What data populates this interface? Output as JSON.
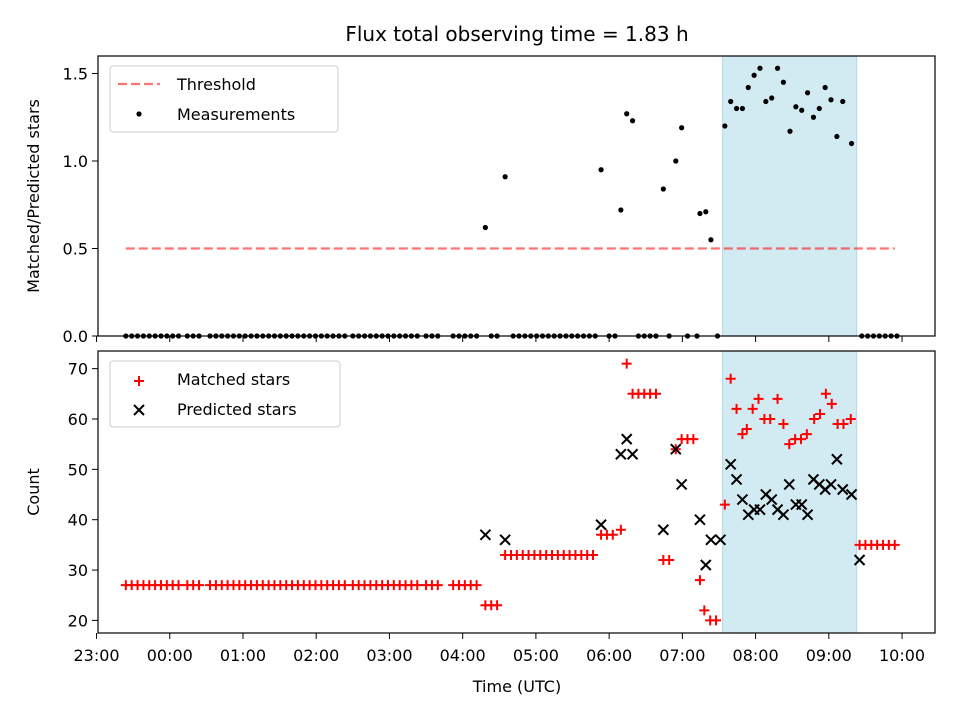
{
  "chart_data": [
    {
      "type": "scatter",
      "title": "Flux total observing time = 1.83 h",
      "xlabel": "",
      "ylabel": "Matched/Predicted stars",
      "ylim": [
        0,
        1.6
      ],
      "yticks": [
        0.0,
        0.5,
        1.0,
        1.5
      ],
      "ytick_labels": [
        "0.0",
        "0.5",
        "1.0",
        "1.5"
      ],
      "x_unit": "hours since 00:00 UTC",
      "xlim": [
        -0.98,
        10.45
      ],
      "highlight_window": {
        "start": 7.55,
        "end": 9.38,
        "color": "#add8e6"
      },
      "threshold": {
        "label": "Threshold",
        "value": 0.5,
        "x_start": -0.6,
        "x_end": 9.9,
        "color": "#ff0000"
      },
      "measurements_label": "Measurements",
      "legend": [
        "Threshold",
        "Measurements"
      ],
      "legend_position": "upper-left",
      "measurements": [
        [
          -0.6,
          0
        ],
        [
          -0.52,
          0
        ],
        [
          -0.44,
          0
        ],
        [
          -0.36,
          0
        ],
        [
          -0.28,
          0
        ],
        [
          -0.2,
          0
        ],
        [
          -0.12,
          0
        ],
        [
          -0.04,
          0
        ],
        [
          0.04,
          0
        ],
        [
          0.12,
          0
        ],
        [
          0.24,
          0
        ],
        [
          0.32,
          0
        ],
        [
          0.4,
          0
        ],
        [
          0.55,
          0
        ],
        [
          0.63,
          0
        ],
        [
          0.71,
          0
        ],
        [
          0.79,
          0
        ],
        [
          0.87,
          0
        ],
        [
          0.95,
          0
        ],
        [
          1.03,
          0
        ],
        [
          1.11,
          0
        ],
        [
          1.19,
          0
        ],
        [
          1.27,
          0
        ],
        [
          1.35,
          0
        ],
        [
          1.43,
          0
        ],
        [
          1.51,
          0
        ],
        [
          1.59,
          0
        ],
        [
          1.67,
          0
        ],
        [
          1.75,
          0
        ],
        [
          1.83,
          0
        ],
        [
          1.91,
          0
        ],
        [
          1.99,
          0
        ],
        [
          2.07,
          0
        ],
        [
          2.15,
          0
        ],
        [
          2.23,
          0
        ],
        [
          2.31,
          0
        ],
        [
          2.39,
          0
        ],
        [
          2.5,
          0
        ],
        [
          2.58,
          0
        ],
        [
          2.66,
          0
        ],
        [
          2.74,
          0
        ],
        [
          2.82,
          0
        ],
        [
          2.9,
          0
        ],
        [
          2.98,
          0
        ],
        [
          3.06,
          0
        ],
        [
          3.14,
          0
        ],
        [
          3.22,
          0
        ],
        [
          3.3,
          0
        ],
        [
          3.38,
          0
        ],
        [
          3.5,
          0
        ],
        [
          3.58,
          0
        ],
        [
          3.66,
          0
        ],
        [
          3.87,
          0
        ],
        [
          3.95,
          0
        ],
        [
          4.03,
          0
        ],
        [
          4.11,
          0
        ],
        [
          4.19,
          0
        ],
        [
          4.31,
          0.62
        ],
        [
          4.39,
          0
        ],
        [
          4.47,
          0
        ],
        [
          4.58,
          0.91
        ],
        [
          4.69,
          0
        ],
        [
          4.77,
          0
        ],
        [
          4.85,
          0
        ],
        [
          4.93,
          0
        ],
        [
          5.01,
          0
        ],
        [
          5.09,
          0
        ],
        [
          5.17,
          0
        ],
        [
          5.25,
          0
        ],
        [
          5.33,
          0
        ],
        [
          5.41,
          0
        ],
        [
          5.49,
          0
        ],
        [
          5.57,
          0
        ],
        [
          5.65,
          0
        ],
        [
          5.73,
          0
        ],
        [
          5.81,
          0
        ],
        [
          5.89,
          0.95
        ],
        [
          6.0,
          0
        ],
        [
          6.08,
          0
        ],
        [
          6.16,
          0.72
        ],
        [
          6.24,
          1.27
        ],
        [
          6.32,
          1.23
        ],
        [
          6.4,
          0
        ],
        [
          6.48,
          0
        ],
        [
          6.56,
          0
        ],
        [
          6.64,
          0
        ],
        [
          6.74,
          0.84
        ],
        [
          6.82,
          0
        ],
        [
          6.91,
          1.0
        ],
        [
          6.99,
          1.19
        ],
        [
          7.07,
          0
        ],
        [
          7.2,
          0
        ],
        [
          7.24,
          0.7
        ],
        [
          7.32,
          0.71
        ],
        [
          7.39,
          0.55
        ],
        [
          7.48,
          0
        ],
        [
          7.58,
          1.2
        ],
        [
          7.66,
          1.34
        ],
        [
          7.74,
          1.3
        ],
        [
          7.82,
          1.3
        ],
        [
          7.9,
          1.42
        ],
        [
          7.98,
          1.49
        ],
        [
          8.06,
          1.53
        ],
        [
          8.14,
          1.34
        ],
        [
          8.22,
          1.36
        ],
        [
          8.3,
          1.53
        ],
        [
          8.38,
          1.45
        ],
        [
          8.47,
          1.17
        ],
        [
          8.55,
          1.31
        ],
        [
          8.63,
          1.29
        ],
        [
          8.71,
          1.39
        ],
        [
          8.79,
          1.25
        ],
        [
          8.87,
          1.3
        ],
        [
          8.95,
          1.42
        ],
        [
          9.03,
          1.35
        ],
        [
          9.11,
          1.14
        ],
        [
          9.19,
          1.34
        ],
        [
          9.31,
          1.1
        ],
        [
          9.45,
          0
        ],
        [
          9.53,
          0
        ],
        [
          9.61,
          0
        ],
        [
          9.69,
          0
        ],
        [
          9.77,
          0
        ],
        [
          9.85,
          0
        ],
        [
          9.93,
          0
        ]
      ]
    },
    {
      "type": "scatter",
      "title": "",
      "xlabel": "Time (UTC)",
      "ylabel": "Count",
      "ylim": [
        17.5,
        73.5
      ],
      "yticks": [
        20,
        30,
        40,
        50,
        60,
        70
      ],
      "ytick_labels": [
        "20",
        "30",
        "40",
        "50",
        "60",
        "70"
      ],
      "x_unit": "hours since 00:00 UTC",
      "xlim": [
        -0.98,
        10.45
      ],
      "xticks": [
        -1,
        0,
        1,
        2,
        3,
        4,
        5,
        6,
        7,
        8,
        9,
        10
      ],
      "xtick_labels": [
        "23:00",
        "00:00",
        "01:00",
        "02:00",
        "03:00",
        "04:00",
        "05:00",
        "06:00",
        "07:00",
        "08:00",
        "09:00",
        "10:00"
      ],
      "highlight_window": {
        "start": 7.55,
        "end": 9.38,
        "color": "#add8e6"
      },
      "legend": [
        "Matched stars",
        "Predicted stars"
      ],
      "legend_position": "upper-left",
      "series": [
        {
          "name": "Matched stars",
          "marker": "+",
          "color": "#ff0000",
          "points": [
            [
              -0.6,
              27
            ],
            [
              -0.52,
              27
            ],
            [
              -0.44,
              27
            ],
            [
              -0.36,
              27
            ],
            [
              -0.28,
              27
            ],
            [
              -0.2,
              27
            ],
            [
              -0.12,
              27
            ],
            [
              -0.04,
              27
            ],
            [
              0.04,
              27
            ],
            [
              0.12,
              27
            ],
            [
              0.24,
              27
            ],
            [
              0.32,
              27
            ],
            [
              0.4,
              27
            ],
            [
              0.55,
              27
            ],
            [
              0.63,
              27
            ],
            [
              0.71,
              27
            ],
            [
              0.79,
              27
            ],
            [
              0.87,
              27
            ],
            [
              0.95,
              27
            ],
            [
              1.03,
              27
            ],
            [
              1.11,
              27
            ],
            [
              1.19,
              27
            ],
            [
              1.27,
              27
            ],
            [
              1.35,
              27
            ],
            [
              1.43,
              27
            ],
            [
              1.51,
              27
            ],
            [
              1.59,
              27
            ],
            [
              1.67,
              27
            ],
            [
              1.75,
              27
            ],
            [
              1.83,
              27
            ],
            [
              1.91,
              27
            ],
            [
              1.99,
              27
            ],
            [
              2.07,
              27
            ],
            [
              2.15,
              27
            ],
            [
              2.23,
              27
            ],
            [
              2.31,
              27
            ],
            [
              2.39,
              27
            ],
            [
              2.5,
              27
            ],
            [
              2.58,
              27
            ],
            [
              2.66,
              27
            ],
            [
              2.74,
              27
            ],
            [
              2.82,
              27
            ],
            [
              2.9,
              27
            ],
            [
              2.98,
              27
            ],
            [
              3.06,
              27
            ],
            [
              3.14,
              27
            ],
            [
              3.22,
              27
            ],
            [
              3.3,
              27
            ],
            [
              3.38,
              27
            ],
            [
              3.5,
              27
            ],
            [
              3.58,
              27
            ],
            [
              3.66,
              27
            ],
            [
              3.87,
              27
            ],
            [
              3.95,
              27
            ],
            [
              4.03,
              27
            ],
            [
              4.11,
              27
            ],
            [
              4.19,
              27
            ],
            [
              4.31,
              23
            ],
            [
              4.39,
              23
            ],
            [
              4.47,
              23
            ],
            [
              4.58,
              33
            ],
            [
              4.66,
              33
            ],
            [
              4.74,
              33
            ],
            [
              4.82,
              33
            ],
            [
              4.9,
              33
            ],
            [
              4.98,
              33
            ],
            [
              5.06,
              33
            ],
            [
              5.14,
              33
            ],
            [
              5.22,
              33
            ],
            [
              5.3,
              33
            ],
            [
              5.38,
              33
            ],
            [
              5.46,
              33
            ],
            [
              5.54,
              33
            ],
            [
              5.62,
              33
            ],
            [
              5.7,
              33
            ],
            [
              5.78,
              33
            ],
            [
              5.89,
              37
            ],
            [
              5.97,
              37
            ],
            [
              6.05,
              37
            ],
            [
              6.16,
              38
            ],
            [
              6.24,
              71
            ],
            [
              6.32,
              65
            ],
            [
              6.4,
              65
            ],
            [
              6.48,
              65
            ],
            [
              6.56,
              65
            ],
            [
              6.64,
              65
            ],
            [
              6.74,
              32
            ],
            [
              6.82,
              32
            ],
            [
              6.91,
              54
            ],
            [
              6.99,
              56
            ],
            [
              7.07,
              56
            ],
            [
              7.15,
              56
            ],
            [
              7.24,
              28
            ],
            [
              7.3,
              22
            ],
            [
              7.38,
              20
            ],
            [
              7.46,
              20
            ],
            [
              7.58,
              43
            ],
            [
              7.66,
              68
            ],
            [
              7.74,
              62
            ],
            [
              7.82,
              57
            ],
            [
              7.88,
              58
            ],
            [
              7.96,
              62
            ],
            [
              8.04,
              64
            ],
            [
              8.12,
              60
            ],
            [
              8.2,
              60
            ],
            [
              8.3,
              64
            ],
            [
              8.38,
              59
            ],
            [
              8.46,
              55
            ],
            [
              8.54,
              56
            ],
            [
              8.62,
              56
            ],
            [
              8.7,
              57
            ],
            [
              8.8,
              60
            ],
            [
              8.88,
              61
            ],
            [
              8.96,
              65
            ],
            [
              9.04,
              63
            ],
            [
              9.12,
              59
            ],
            [
              9.2,
              59
            ],
            [
              9.3,
              60
            ],
            [
              9.42,
              35
            ],
            [
              9.5,
              35
            ],
            [
              9.58,
              35
            ],
            [
              9.66,
              35
            ],
            [
              9.74,
              35
            ],
            [
              9.82,
              35
            ],
            [
              9.9,
              35
            ]
          ]
        },
        {
          "name": "Predicted stars",
          "marker": "x",
          "color": "#000000",
          "points": [
            [
              4.31,
              37
            ],
            [
              4.58,
              36
            ],
            [
              5.89,
              39
            ],
            [
              6.16,
              53
            ],
            [
              6.24,
              56
            ],
            [
              6.32,
              53
            ],
            [
              6.74,
              38
            ],
            [
              6.91,
              54
            ],
            [
              6.99,
              47
            ],
            [
              7.24,
              40
            ],
            [
              7.32,
              31
            ],
            [
              7.39,
              36
            ],
            [
              7.52,
              36
            ],
            [
              7.66,
              51
            ],
            [
              7.74,
              48
            ],
            [
              7.82,
              44
            ],
            [
              7.9,
              41
            ],
            [
              7.98,
              42
            ],
            [
              8.06,
              42
            ],
            [
              8.14,
              45
            ],
            [
              8.22,
              44
            ],
            [
              8.3,
              42
            ],
            [
              8.38,
              41
            ],
            [
              8.46,
              47
            ],
            [
              8.55,
              43
            ],
            [
              8.63,
              43
            ],
            [
              8.71,
              41
            ],
            [
              8.79,
              48
            ],
            [
              8.87,
              47
            ],
            [
              8.95,
              46
            ],
            [
              9.03,
              47
            ],
            [
              9.11,
              52
            ],
            [
              9.19,
              46
            ],
            [
              9.31,
              45
            ],
            [
              9.42,
              32
            ]
          ]
        }
      ]
    }
  ]
}
